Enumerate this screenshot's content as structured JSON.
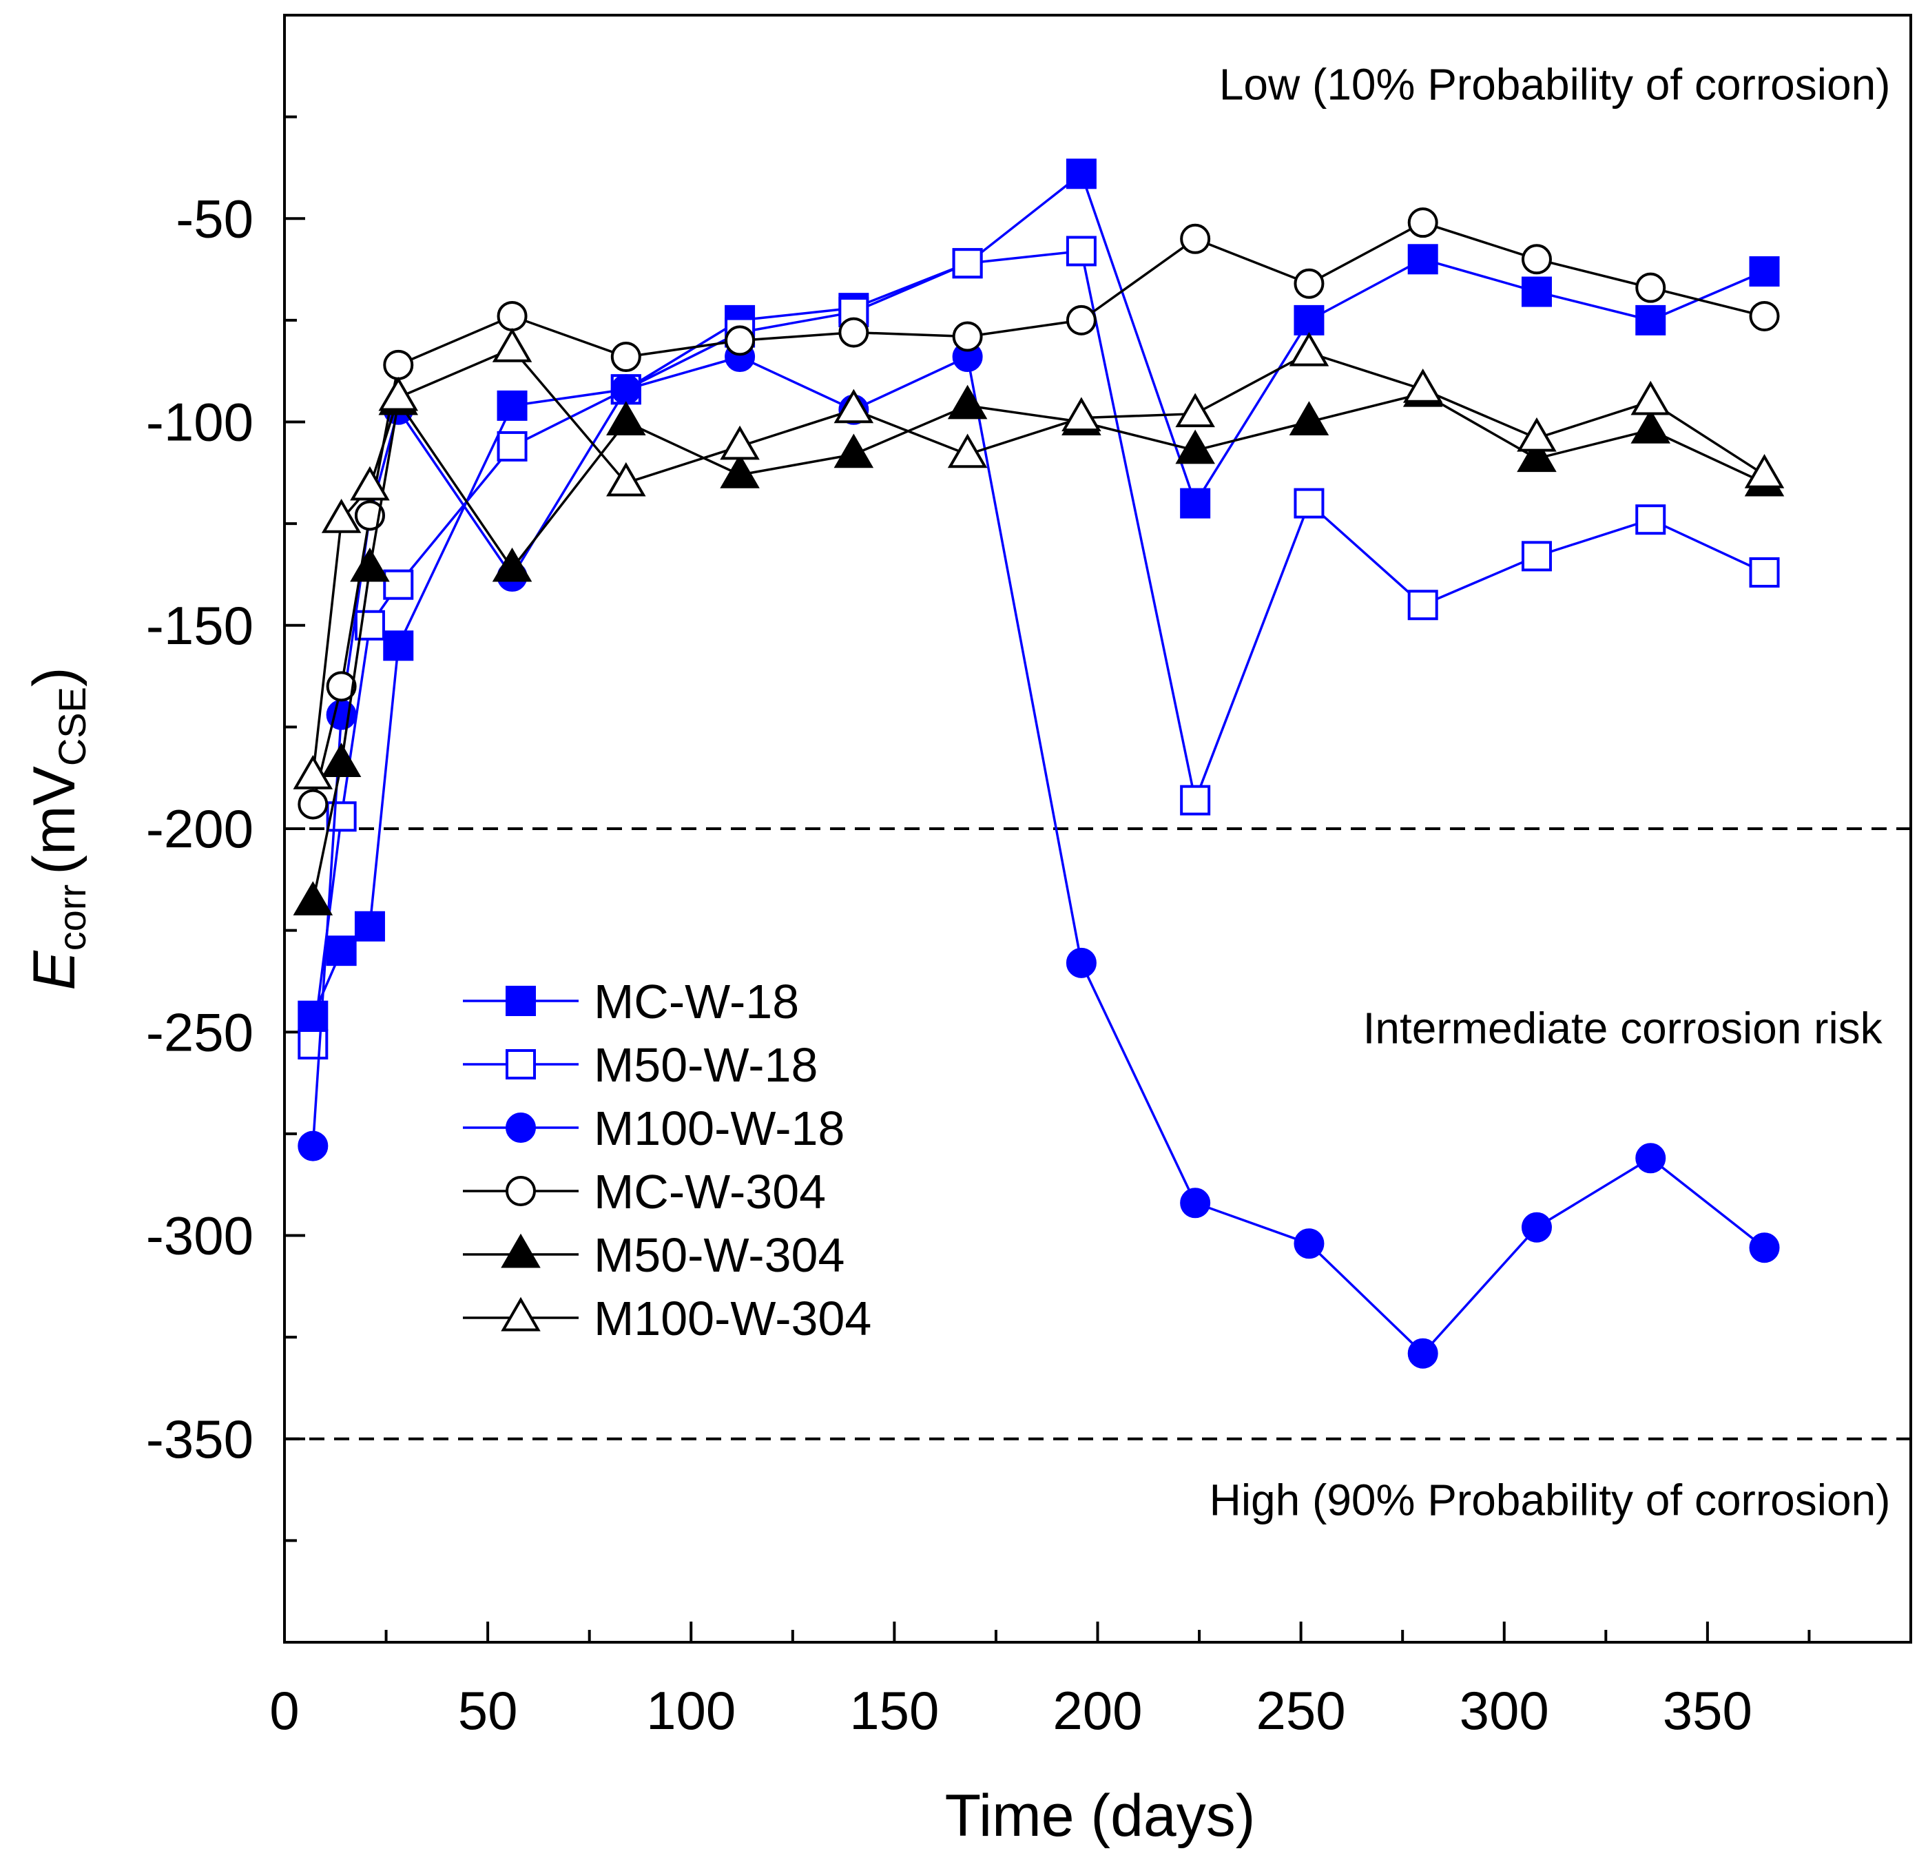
{
  "chart_data": {
    "type": "line",
    "title": "",
    "xlabel": "Time (days)",
    "ylabel": {
      "symbol": "E",
      "symbol_sub": "corr",
      "unit_open": "(mV",
      "unit_sub": "CSE",
      "unit_close": ")"
    },
    "xlim": [
      0,
      400
    ],
    "ylim": [
      -400,
      0
    ],
    "x_ticks": [
      0,
      50,
      100,
      150,
      200,
      250,
      300,
      350
    ],
    "y_ticks": [
      -50,
      -100,
      -150,
      -200,
      -250,
      -300,
      -350
    ],
    "x_tick_labels": [
      "0",
      "50",
      "100",
      "150",
      "200",
      "250",
      "300",
      "350"
    ],
    "y_tick_labels": [
      "-50",
      "-100",
      "-150",
      "-200",
      "-250",
      "-300",
      "-350"
    ],
    "grid": false,
    "legend_position": "left-middle",
    "reference_lines": [
      -200,
      -350
    ],
    "annotations": [
      {
        "text": "Low (10% Probability of corrosion)",
        "x": 395,
        "y": -17
      },
      {
        "text": "Intermediate corrosion risk",
        "x": 393,
        "y": -249
      },
      {
        "text": "High (90% Probability of corrosion)",
        "x": 395,
        "y": -365
      }
    ],
    "series": [
      {
        "name": "MC-W-18",
        "color": "#0000ff",
        "marker": "square",
        "filled": true,
        "x": [
          7,
          14,
          21,
          28,
          56,
          84,
          112,
          140,
          168,
          196,
          224,
          252,
          280,
          308,
          336,
          364
        ],
        "y": [
          -246,
          -230,
          -224,
          -155,
          -96,
          -92,
          -75,
          -72,
          -61,
          -39,
          -120,
          -75,
          -60,
          -68,
          -75,
          -63
        ]
      },
      {
        "name": "M50-W-18",
        "color": "#0000ff",
        "marker": "square",
        "filled": false,
        "x": [
          7,
          14,
          21,
          28,
          56,
          84,
          112,
          140,
          168,
          196,
          224,
          252,
          280,
          308,
          336,
          364
        ],
        "y": [
          -253,
          -197,
          -150,
          -140,
          -106,
          -92,
          -78,
          -73,
          -61,
          -58,
          -193,
          -120,
          -145,
          -133,
          -124,
          -137
        ]
      },
      {
        "name": "M100-W-18",
        "color": "#0000ff",
        "marker": "circle",
        "filled": true,
        "x": [
          7,
          14,
          21,
          28,
          56,
          84,
          112,
          140,
          168,
          196,
          224,
          252,
          280,
          308,
          336,
          364
        ],
        "y": [
          -278,
          -172,
          -123,
          -97,
          -138,
          -92,
          -84,
          -97,
          -84,
          -233,
          -292,
          -302,
          -329,
          -298,
          -281,
          -303
        ]
      },
      {
        "name": "MC-W-304",
        "color": "#000000",
        "marker": "circle",
        "filled": false,
        "x": [
          7,
          14,
          21,
          28,
          56,
          84,
          112,
          140,
          168,
          196,
          224,
          252,
          280,
          308,
          336,
          364
        ],
        "y": [
          -194,
          -165,
          -123,
          -86,
          -74,
          -84,
          -80,
          -78,
          -79,
          -75,
          -55,
          -66,
          -51,
          -60,
          -67,
          -74
        ]
      },
      {
        "name": "M50-W-304",
        "color": "#000000",
        "marker": "triangle",
        "filled": true,
        "x": [
          7,
          14,
          21,
          28,
          56,
          84,
          112,
          140,
          168,
          196,
          224,
          252,
          280,
          308,
          336,
          364
        ],
        "y": [
          -218,
          -184,
          -136,
          -95,
          -136,
          -100,
          -113,
          -108,
          -96,
          -100,
          -107,
          -100,
          -93,
          -109,
          -102,
          -115
        ]
      },
      {
        "name": "M100-W-304",
        "color": "#000000",
        "marker": "triangle",
        "filled": false,
        "x": [
          7,
          14,
          21,
          28,
          56,
          84,
          112,
          140,
          168,
          196,
          224,
          252,
          280,
          308,
          336,
          364
        ],
        "y": [
          -187,
          -124,
          -116,
          -94,
          -82,
          -115,
          -106,
          -97,
          -108,
          -99,
          -98,
          -83,
          -92,
          -104,
          -95,
          -113
        ]
      }
    ]
  }
}
